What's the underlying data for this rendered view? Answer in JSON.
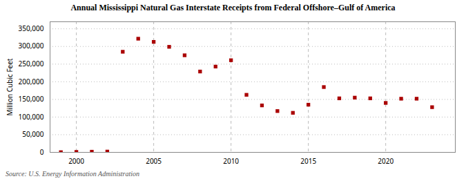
{
  "chart_data": {
    "type": "scatter",
    "title": "Annual Mississippi Natural Gas Interstate Receipts from Federal Offshore–Gulf of America",
    "ylabel": "Million Cubic Feet",
    "source": "Source: U.S. Energy Information Administration",
    "color": "#aa0000",
    "marker": "square",
    "x": [
      1999,
      2000,
      2001,
      2002,
      2003,
      2004,
      2005,
      2006,
      2007,
      2008,
      2009,
      2010,
      2011,
      2012,
      2013,
      2014,
      2015,
      2016,
      2017,
      2018,
      2019,
      2020,
      2021,
      2022,
      2023
    ],
    "values": [
      500,
      1200,
      1800,
      2200,
      285000,
      322000,
      313000,
      299000,
      275000,
      229000,
      243000,
      261000,
      163000,
      133000,
      117000,
      112000,
      135000,
      185000,
      153000,
      155000,
      153000,
      140000,
      152000,
      152000,
      128000
    ],
    "xlim": [
      1998.3,
      2024.5
    ],
    "xticks": [
      2000,
      2005,
      2010,
      2015,
      2020
    ],
    "ylim": [
      0,
      370000
    ],
    "yticks": [
      0,
      {
        "value": 50000,
        "label": "50,000"
      },
      {
        "value": 100000,
        "label": "100,000"
      },
      {
        "value": 150000,
        "label": "150,000"
      },
      {
        "value": 200000,
        "label": "200,000"
      },
      {
        "value": 250000,
        "label": "250,000"
      },
      {
        "value": 300000,
        "label": "300,000"
      },
      {
        "value": 350000,
        "label": "350,000"
      }
    ],
    "grid": true
  }
}
